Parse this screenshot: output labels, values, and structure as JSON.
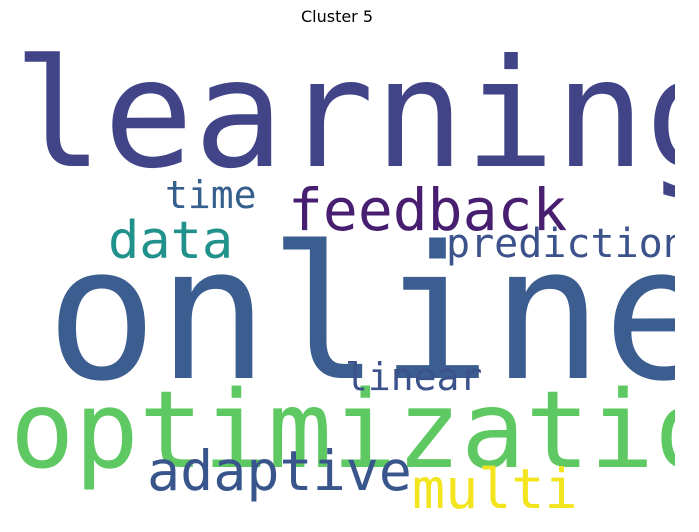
{
  "title": "Cluster 5",
  "words": [
    {
      "key": "learning",
      "text": "learning",
      "color": "#414487"
    },
    {
      "key": "online",
      "text": "online",
      "color": "#3b5d8f"
    },
    {
      "key": "optimization",
      "text": "optimization",
      "color": "#5ec962"
    },
    {
      "key": "feedback",
      "text": "feedback",
      "color": "#481f70"
    },
    {
      "key": "data",
      "text": "data",
      "color": "#21918c"
    },
    {
      "key": "prediction",
      "text": "prediction",
      "color": "#3b528b"
    },
    {
      "key": "time",
      "text": "time",
      "color": "#355f8d"
    },
    {
      "key": "linear",
      "text": "linear",
      "color": "#3b528b"
    },
    {
      "key": "adaptive",
      "text": "adaptive",
      "color": "#39568c"
    },
    {
      "key": "multi",
      "text": "multi",
      "color": "#f2e51d"
    }
  ]
}
